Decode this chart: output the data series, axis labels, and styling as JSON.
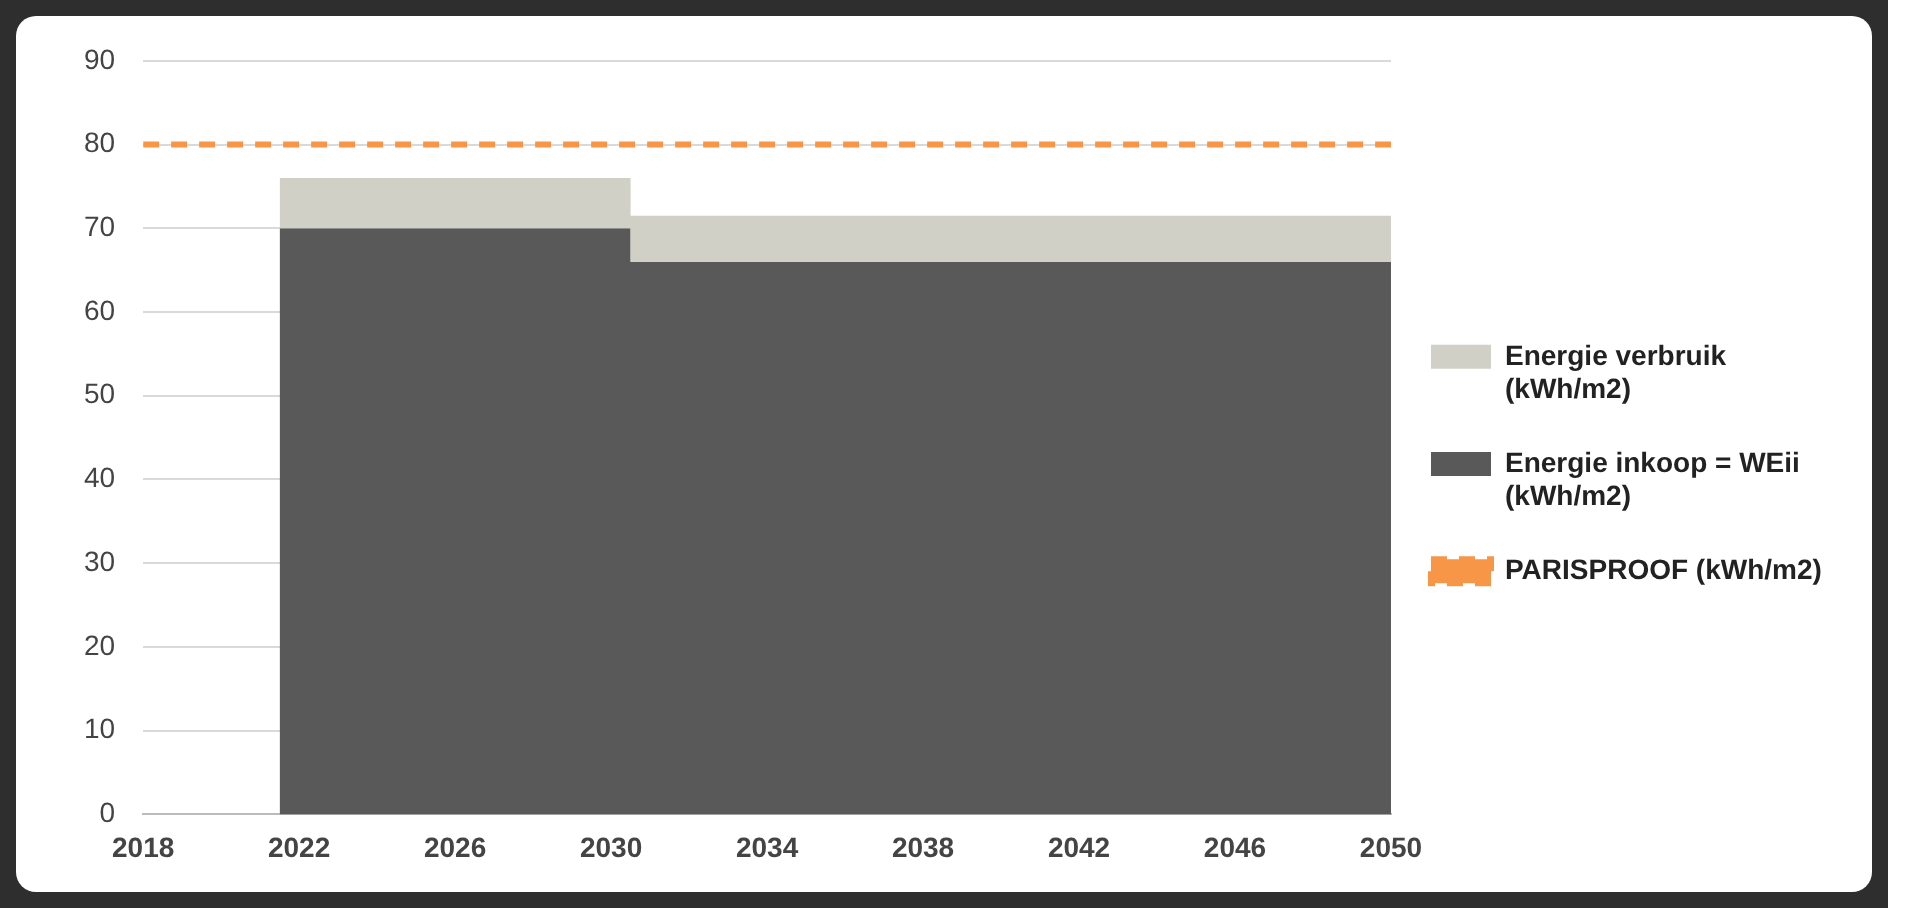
{
  "chart_data": {
    "type": "area",
    "stacked": true,
    "x": [
      2021.5,
      2030.5,
      2030.5,
      2050
    ],
    "series": [
      {
        "name": "Energie inkoop = WEii (kWh/m2)",
        "color": "#595959",
        "values": [
          70,
          70,
          66,
          66
        ]
      },
      {
        "name": "Energie verbruik (kWh/m2)",
        "color": "#d0d0c6",
        "values": [
          6,
          6,
          5.5,
          5.5
        ]
      }
    ],
    "ref_lines": [
      {
        "axis": "y",
        "value": 80,
        "label": "PARISPROOF (kWh/m2)",
        "color": "#f79646",
        "line_style": "dashed"
      }
    ],
    "xlim": [
      2018,
      2050
    ],
    "xticks": [
      2018,
      2022,
      2026,
      2030,
      2034,
      2038,
      2042,
      2046,
      2050
    ],
    "ylim": [
      0,
      90
    ],
    "yticks": [
      0,
      10,
      20,
      30,
      40,
      50,
      60,
      70,
      80,
      90
    ],
    "grid": "y",
    "legend": "right"
  }
}
